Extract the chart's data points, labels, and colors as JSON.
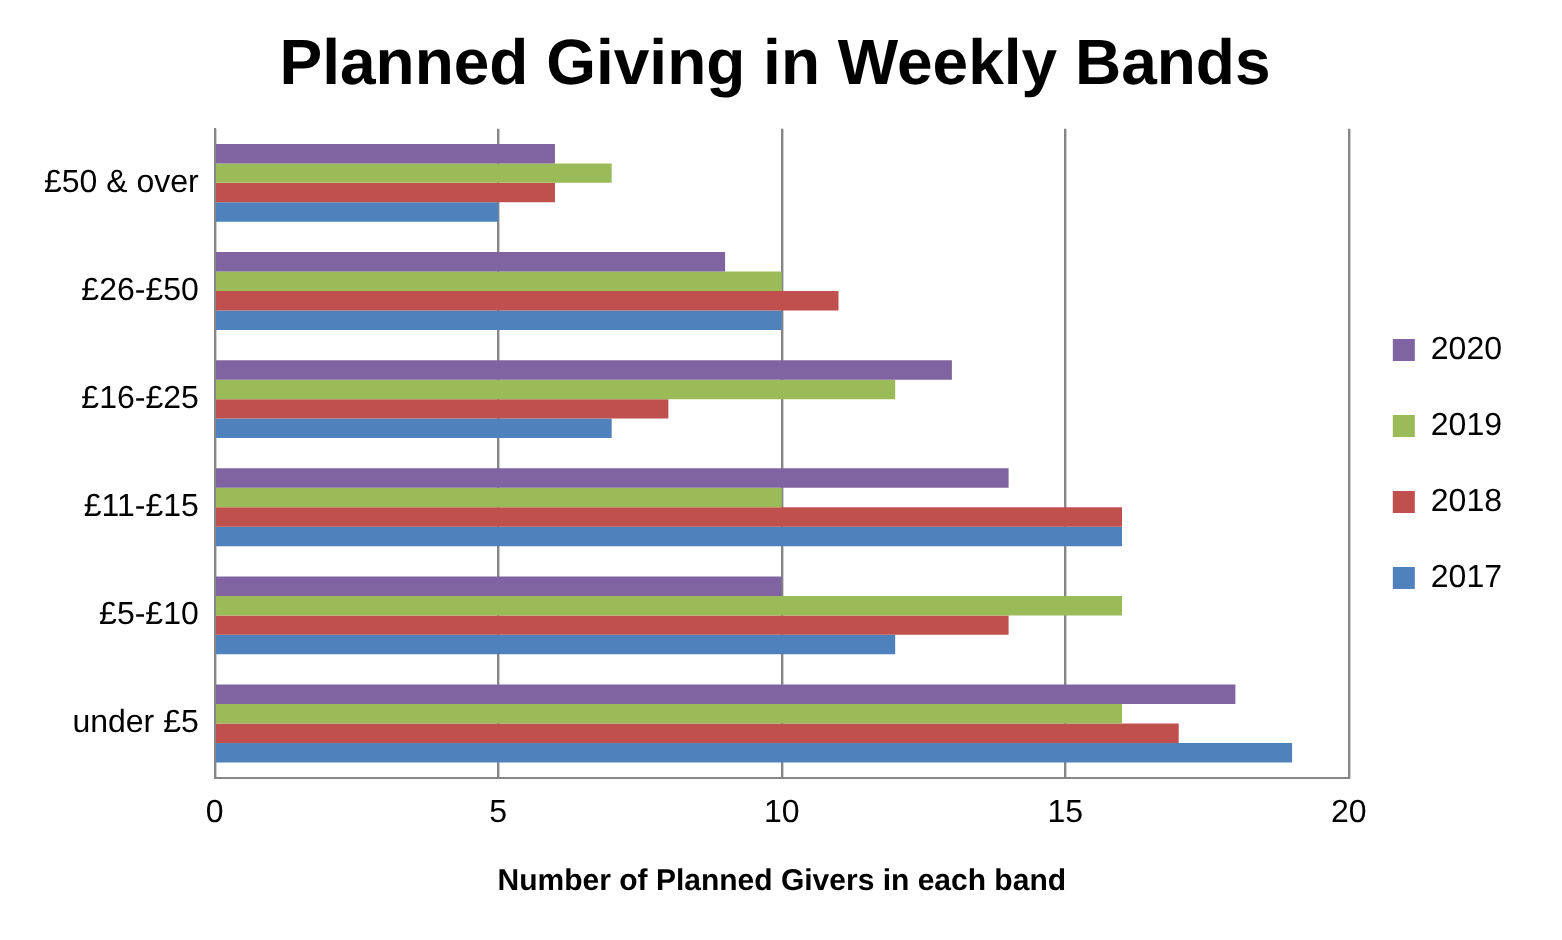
{
  "chart_data": {
    "type": "bar",
    "orientation": "horizontal",
    "title": "Planned Giving in Weekly Bands",
    "xlabel": "Number of Planned Givers in each band",
    "categories": [
      "£50 & over",
      "£26-£50",
      "£16-£25",
      "£11-£15",
      "£5-£10",
      "under £5"
    ],
    "series": [
      {
        "name": "2020",
        "color": "#8064a2",
        "values": [
          6,
          9,
          13,
          14,
          10,
          18
        ]
      },
      {
        "name": "2019",
        "color": "#9bbb59",
        "values": [
          7,
          10,
          12,
          10,
          16,
          16
        ]
      },
      {
        "name": "2018",
        "color": "#c0504d",
        "values": [
          6,
          11,
          8,
          16,
          14,
          17
        ]
      },
      {
        "name": "2017",
        "color": "#4f81bd",
        "values": [
          5,
          10,
          7,
          16,
          12,
          19
        ]
      }
    ],
    "xlim": [
      0,
      20
    ],
    "xticks": [
      0,
      5,
      10,
      15,
      20
    ],
    "grid": "x",
    "legend": "right"
  }
}
